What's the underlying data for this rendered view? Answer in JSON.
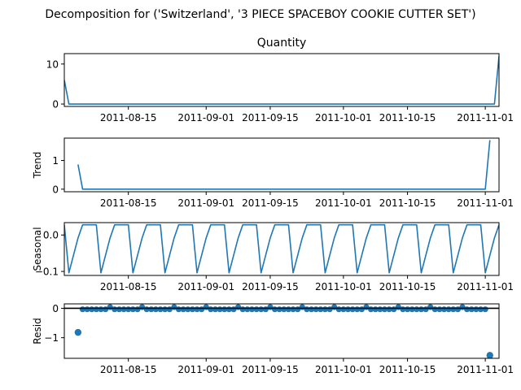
{
  "chart_data": {
    "type": "line",
    "title": "Decomposition for ('Switzerland', '3 PIECE SPACEBOY COOKIE CUTTER SET')",
    "x_start": "2011-08-01",
    "x_end": "2011-11-04",
    "x_ticks": [
      "2011-08-15",
      "2011-09-01",
      "2011-09-15",
      "2011-10-01",
      "2011-10-15",
      "2011-11-01"
    ],
    "panels": [
      {
        "name": "Quantity",
        "title": "Quantity",
        "ylabel": "",
        "style": "line",
        "ylim": [
          -0.6,
          12.6
        ],
        "yticks": [
          0,
          10
        ],
        "points": [
          [
            "2011-08-01",
            6
          ],
          [
            "2011-08-02",
            0
          ],
          [
            "2011-11-03",
            0
          ],
          [
            "2011-11-04",
            12
          ]
        ]
      },
      {
        "name": "Trend",
        "title": "",
        "ylabel": "Trend",
        "style": "line",
        "ylim": [
          -0.09,
          1.78
        ],
        "yticks": [
          0,
          1
        ],
        "points": [
          [
            "2011-08-04",
            0.86
          ],
          [
            "2011-08-05",
            0
          ],
          [
            "2011-11-01",
            0
          ],
          [
            "2011-11-02",
            1.71
          ]
        ]
      },
      {
        "name": "Seasonal",
        "title": "",
        "ylabel": "Seasonal",
        "style": "seasonal",
        "ylim": [
          -0.111,
          0.034
        ],
        "yticks": [
          0.0,
          -0.1
        ],
        "ytick_labels": [
          "0.0",
          "−0.1"
        ],
        "pattern": [
          0.028,
          -0.104,
          -0.056,
          -0.008,
          0.028,
          0.028,
          0.028
        ],
        "first_high_day": "2011-08-01",
        "first_low_day": "2011-08-03"
      },
      {
        "name": "Resid",
        "title": "",
        "ylabel": "Resid",
        "style": "scatter",
        "ylim": [
          -1.7,
          0.15
        ],
        "yticks": [
          0,
          -1
        ],
        "ytick_labels": [
          "0",
          "−1"
        ],
        "baseline": 0,
        "outliers": [
          [
            "2011-08-04",
            -0.82
          ],
          [
            "2011-11-02",
            -1.6
          ]
        ],
        "dense_range": [
          "2011-08-05",
          "2011-11-01"
        ],
        "dense_values": [
          -0.035,
          -0.035,
          -0.035,
          -0.035,
          -0.035,
          -0.035,
          0.04
        ]
      }
    ]
  }
}
